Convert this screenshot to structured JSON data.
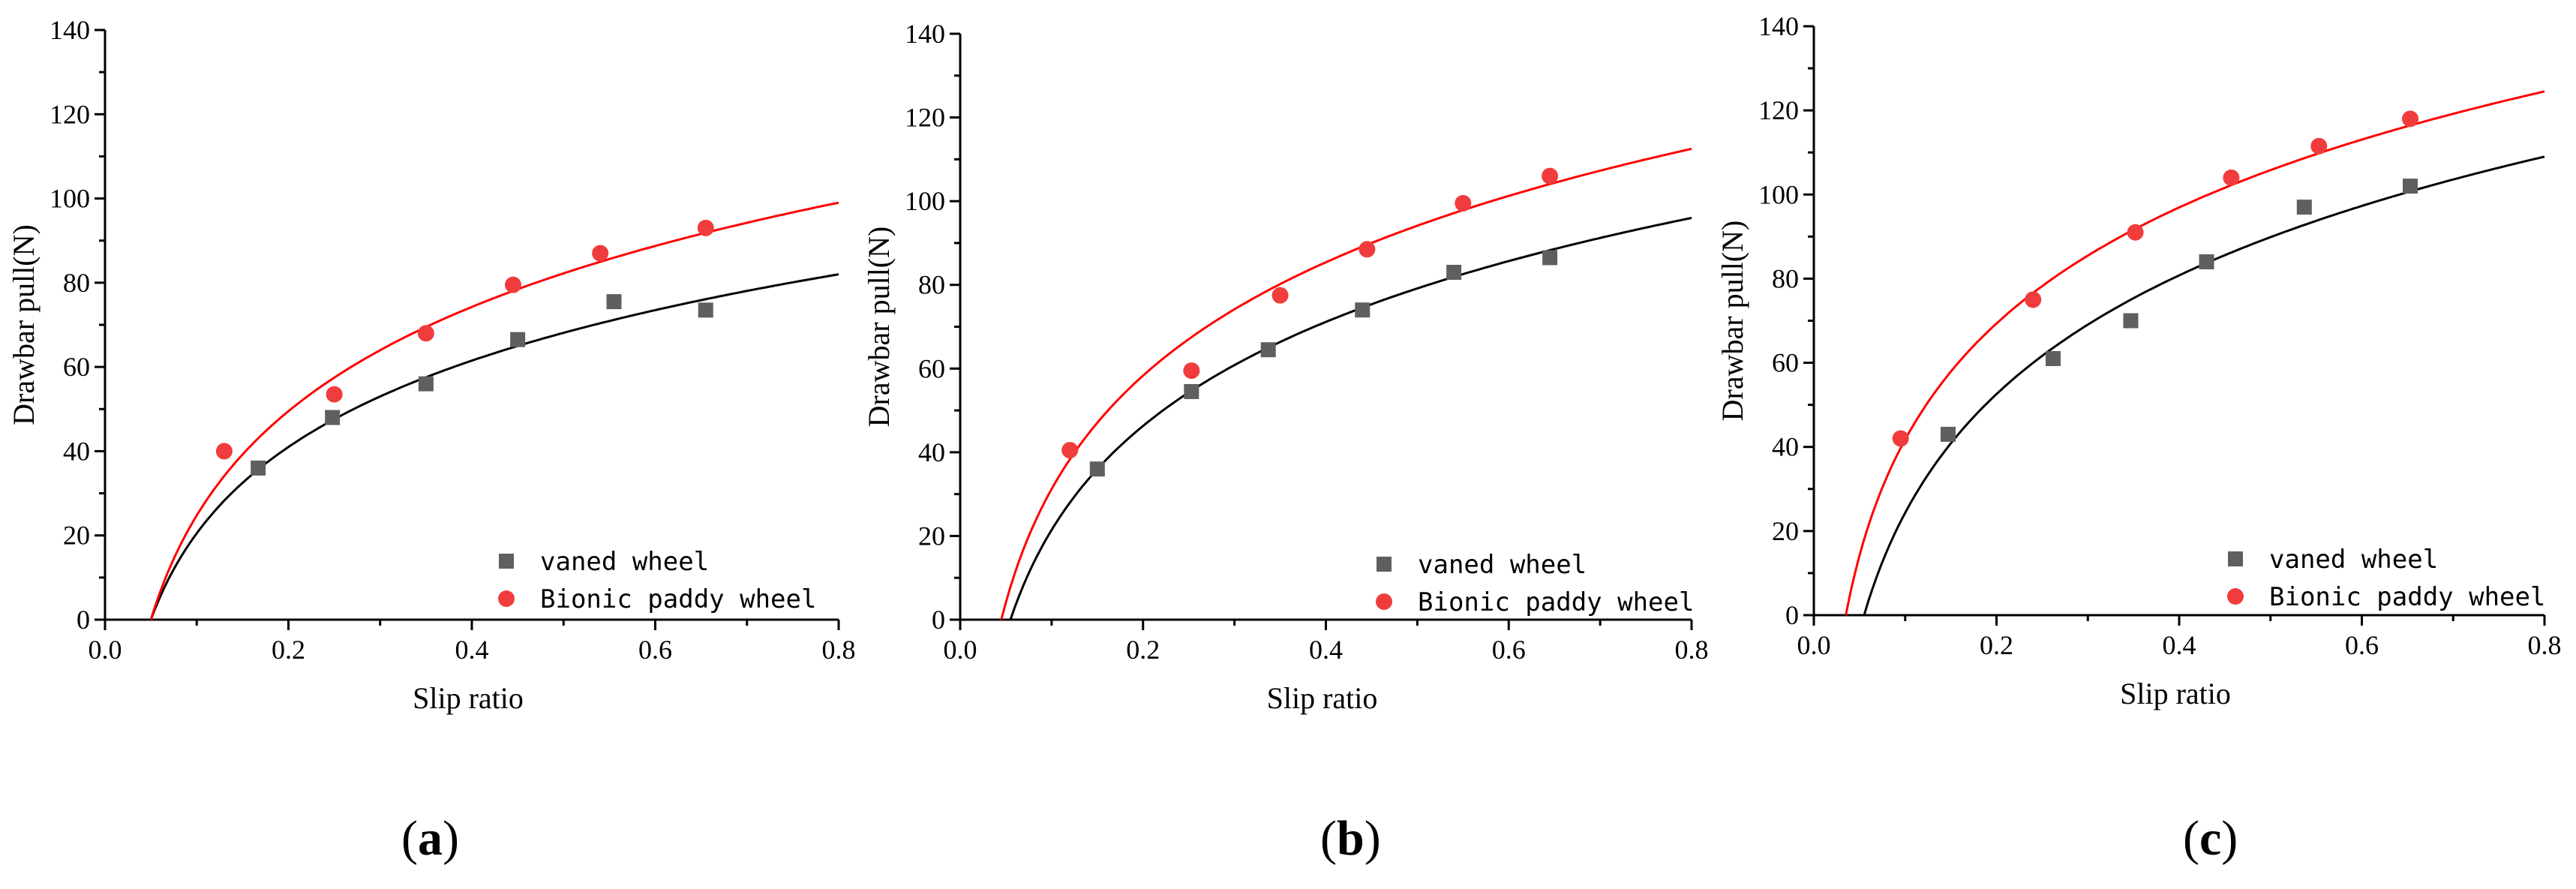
{
  "colors": {
    "vaned": "#5f5f5f",
    "bionic": "#f03c3c",
    "fit_vaned": "#000000",
    "fit_bionic": "#ff0000"
  },
  "chart_data": [
    {
      "type": "scatter",
      "panel_label": "a",
      "xlabel": "Slip ratio",
      "ylabel": "Drawbar pull(N)",
      "xlim": [
        0.0,
        0.8
      ],
      "ylim": [
        0,
        140
      ],
      "xticks": [
        "0.0",
        "0.2",
        "0.4",
        "0.6",
        "0.8"
      ],
      "yticks": [
        "0",
        "20",
        "40",
        "60",
        "80",
        "100",
        "120",
        "140"
      ],
      "legend_position": "bottom-right",
      "series": [
        {
          "name": "vaned wheel",
          "marker": "square",
          "x": [
            0.167,
            0.248,
            0.35,
            0.45,
            0.555,
            0.655
          ],
          "y": [
            36,
            48,
            56,
            66.5,
            75.5,
            73.5
          ],
          "fit": {
            "x0": 0.05,
            "x_end": 0.8,
            "y_end": 82
          }
        },
        {
          "name": "Bionic paddy wheel",
          "marker": "circle",
          "x": [
            0.13,
            0.25,
            0.35,
            0.445,
            0.54,
            0.655
          ],
          "y": [
            40,
            53.5,
            68,
            79.5,
            87,
            93
          ],
          "fit": {
            "x0": 0.05,
            "x_end": 0.8,
            "y_end": 99
          }
        }
      ]
    },
    {
      "type": "scatter",
      "panel_label": "b",
      "xlabel": "Slip ratio",
      "ylabel": "Drawbar pull(N)",
      "xlim": [
        0.0,
        0.8
      ],
      "ylim": [
        0,
        140
      ],
      "xticks": [
        "0.0",
        "0.2",
        "0.4",
        "0.6",
        "0.8"
      ],
      "yticks": [
        "0",
        "20",
        "40",
        "60",
        "80",
        "100",
        "120",
        "140"
      ],
      "legend_position": "bottom-right",
      "series": [
        {
          "name": "vaned wheel",
          "marker": "square",
          "x": [
            0.15,
            0.253,
            0.337,
            0.44,
            0.54,
            0.645
          ],
          "y": [
            36,
            54.5,
            64.5,
            74,
            83,
            86.5
          ],
          "fit": {
            "x0": 0.055,
            "x_end": 0.8,
            "y_end": 96
          }
        },
        {
          "name": "Bionic paddy wheel",
          "marker": "circle",
          "x": [
            0.12,
            0.253,
            0.35,
            0.445,
            0.55,
            0.645
          ],
          "y": [
            40.5,
            59.5,
            77.5,
            88.5,
            99.5,
            106
          ],
          "fit": {
            "x0": 0.045,
            "x_end": 0.8,
            "y_end": 112.5
          }
        }
      ]
    },
    {
      "type": "scatter",
      "panel_label": "c",
      "xlabel": "Slip ratio",
      "ylabel": "Drawbar pull(N)",
      "xlim": [
        0.0,
        0.8
      ],
      "ylim": [
        0,
        140
      ],
      "xticks": [
        "0.0",
        "0.2",
        "0.4",
        "0.6",
        "0.8"
      ],
      "yticks": [
        "0",
        "20",
        "40",
        "60",
        "80",
        "100",
        "120",
        "140"
      ],
      "legend_position": "bottom-right",
      "series": [
        {
          "name": "vaned wheel",
          "marker": "square",
          "x": [
            0.147,
            0.262,
            0.347,
            0.43,
            0.537,
            0.653
          ],
          "y": [
            43,
            61,
            70,
            84,
            97,
            102
          ],
          "fit": {
            "x0": 0.055,
            "x_end": 0.8,
            "y_end": 109
          }
        },
        {
          "name": "Bionic paddy wheel",
          "marker": "circle",
          "x": [
            0.095,
            0.24,
            0.352,
            0.457,
            0.553,
            0.653
          ],
          "y": [
            42,
            75,
            91,
            104,
            111.5,
            118
          ],
          "fit": {
            "x0": 0.035,
            "x_end": 0.8,
            "y_end": 124.5
          }
        }
      ]
    }
  ]
}
